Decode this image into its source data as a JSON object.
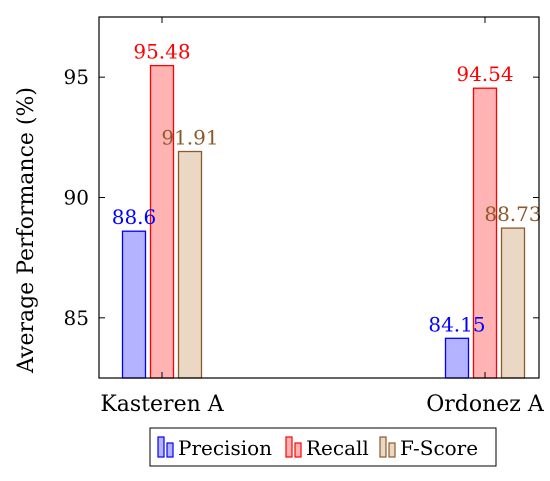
{
  "chart_data": {
    "type": "bar",
    "categories": [
      "Kasteren A",
      "Ordonez A"
    ],
    "series": [
      {
        "name": "Precision",
        "values": [
          88.6,
          84.15
        ],
        "labels": [
          "88.6",
          "84.15"
        ],
        "fill": "#b3b3ff",
        "stroke": "#0000ff",
        "label_color": "#0000ff"
      },
      {
        "name": "Recall",
        "values": [
          95.48,
          94.54
        ],
        "labels": [
          "95.48",
          "94.54"
        ],
        "fill": "#ffb3b3",
        "stroke": "#ff0000",
        "label_color": "#ff0000"
      },
      {
        "name": "F-Score",
        "values": [
          91.91,
          88.73
        ],
        "labels": [
          "91.91",
          "88.73"
        ],
        "fill": "#ead8c4",
        "stroke": "#8b5a2b",
        "label_color": "#8b5a2b"
      }
    ],
    "xlabel": "",
    "ylabel": "Average Performance (%)",
    "ylim": [
      82.5,
      97.5
    ],
    "yticks": [
      85,
      90,
      95
    ],
    "grid": false,
    "legend_position": "bottom"
  }
}
